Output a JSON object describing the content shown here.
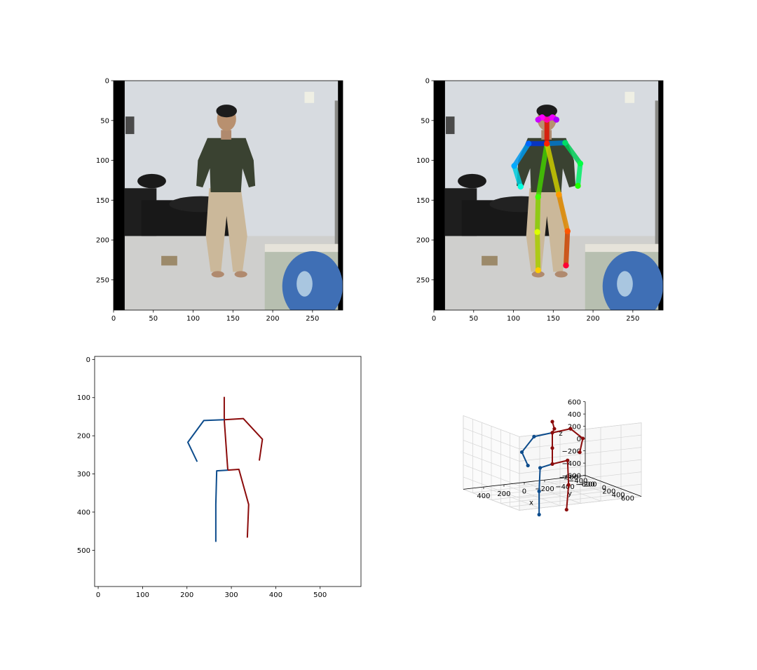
{
  "colors": {
    "left_limb": "#0d4c8c",
    "right_limb": "#8b0b0b",
    "wall": "#d7dbe0",
    "floor": "#cfcfcd",
    "shirt": "#3a4231",
    "pants": "#cbb89a",
    "black_bar": "#000000"
  },
  "chart_data": [
    {
      "name": "input-frame",
      "type": "image",
      "content": "photo of a person standing",
      "xlim": [
        0,
        288
      ],
      "ylim": [
        288,
        0
      ],
      "xticks": [
        0,
        50,
        100,
        150,
        200,
        250
      ],
      "yticks": [
        0,
        50,
        100,
        150,
        200,
        250
      ]
    },
    {
      "name": "frame-with-2d-keypoints",
      "type": "image",
      "content": "photo with colored 2D pose overlay",
      "xlim": [
        0,
        288
      ],
      "ylim": [
        288,
        0
      ],
      "xticks": [
        0,
        50,
        100,
        150,
        200,
        250
      ],
      "yticks": [
        0,
        50,
        100,
        150,
        200,
        250
      ],
      "keypoints": [
        {
          "id": "nose",
          "x": 142,
          "y": 49,
          "color": "#ff00aa"
        },
        {
          "id": "eye-l",
          "x": 136,
          "y": 46,
          "color": "#ff00ff"
        },
        {
          "id": "eye-r",
          "x": 149,
          "y": 46,
          "color": "#ee00ff"
        },
        {
          "id": "ear-l",
          "x": 131,
          "y": 49,
          "color": "#cc00ff"
        },
        {
          "id": "ear-r",
          "x": 154,
          "y": 49,
          "color": "#aa00ff"
        },
        {
          "id": "neck",
          "x": 142,
          "y": 79,
          "color": "#ff2200"
        },
        {
          "id": "shoulder-l",
          "x": 119,
          "y": 79,
          "color": "#0066ff"
        },
        {
          "id": "shoulder-r",
          "x": 165,
          "y": 78,
          "color": "#00dd66"
        },
        {
          "id": "elbow-l",
          "x": 101,
          "y": 107,
          "color": "#00aaff"
        },
        {
          "id": "elbow-r",
          "x": 184,
          "y": 104,
          "color": "#00ff44"
        },
        {
          "id": "wrist-l",
          "x": 109,
          "y": 133,
          "color": "#00ffdd"
        },
        {
          "id": "wrist-r",
          "x": 181,
          "y": 132,
          "color": "#22ff00"
        },
        {
          "id": "hip-l",
          "x": 131,
          "y": 146,
          "color": "#44ff00"
        },
        {
          "id": "hip-r",
          "x": 157,
          "y": 143,
          "color": "#ff9900"
        },
        {
          "id": "knee-l",
          "x": 130,
          "y": 190,
          "color": "#ddff00"
        },
        {
          "id": "knee-r",
          "x": 168,
          "y": 189,
          "color": "#ff5500"
        },
        {
          "id": "ankle-l",
          "x": 131,
          "y": 238,
          "color": "#ffcc00"
        },
        {
          "id": "ankle-r",
          "x": 166,
          "y": 232,
          "color": "#ff0033"
        }
      ],
      "limbs": [
        {
          "from": "neck",
          "to": "nose",
          "color": "#dd1100"
        },
        {
          "from": "neck",
          "to": "shoulder-l",
          "color": "#0033dd"
        },
        {
          "from": "neck",
          "to": "shoulder-r",
          "color": "#0077cc"
        },
        {
          "from": "shoulder-l",
          "to": "elbow-l",
          "color": "#0099ee"
        },
        {
          "from": "elbow-l",
          "to": "wrist-l",
          "color": "#00ccdd"
        },
        {
          "from": "shoulder-r",
          "to": "elbow-r",
          "color": "#00cc55"
        },
        {
          "from": "elbow-r",
          "to": "wrist-r",
          "color": "#00ee66"
        },
        {
          "from": "neck",
          "to": "hip-l",
          "color": "#44cc00"
        },
        {
          "from": "hip-l",
          "to": "knee-l",
          "color": "#88cc00"
        },
        {
          "from": "knee-l",
          "to": "ankle-l",
          "color": "#aacc00"
        },
        {
          "from": "neck",
          "to": "hip-r",
          "color": "#cccc00"
        },
        {
          "from": "hip-r",
          "to": "knee-r",
          "color": "#dd8800"
        },
        {
          "from": "knee-r",
          "to": "ankle-r",
          "color": "#cc4400"
        },
        {
          "from": "nose",
          "to": "eye-l",
          "color": "#ff00cc"
        },
        {
          "from": "nose",
          "to": "eye-r",
          "color": "#dd00ff"
        },
        {
          "from": "eye-l",
          "to": "ear-l",
          "color": "#cc00ee"
        },
        {
          "from": "eye-r",
          "to": "ear-r",
          "color": "#aa00ee"
        }
      ]
    },
    {
      "name": "2d-skeleton",
      "type": "line",
      "xlim": [
        -8,
        592
      ],
      "ylim": [
        595,
        -8
      ],
      "xticks": [
        0,
        100,
        200,
        300,
        400,
        500
      ],
      "yticks": [
        0,
        100,
        200,
        300,
        400,
        500
      ],
      "series": [
        {
          "side": "right",
          "color": "#8b0b0b",
          "x": [
            284,
            284
          ],
          "y": [
            98,
            158
          ]
        },
        {
          "side": "right",
          "color": "#8b0b0b",
          "x": [
            284,
            327,
            370,
            363
          ],
          "y": [
            158,
            155,
            209,
            265
          ]
        },
        {
          "side": "right",
          "color": "#8b0b0b",
          "x": [
            284,
            292,
            317,
            339,
            336
          ],
          "y": [
            158,
            290,
            288,
            380,
            467
          ]
        },
        {
          "side": "left",
          "color": "#0d4c8c",
          "x": [
            284,
            238,
            202,
            223
          ],
          "y": [
            158,
            160,
            217,
            268
          ]
        },
        {
          "side": "left",
          "color": "#0d4c8c",
          "x": [
            292,
            267,
            265,
            265
          ],
          "y": [
            290,
            292,
            380,
            478
          ]
        }
      ]
    },
    {
      "name": "3d-skeleton",
      "type": "line3d",
      "xlabel": "x",
      "ylabel": "y",
      "zlabel": "z",
      "xlim": [
        -600,
        600
      ],
      "ylim": [
        -600,
        600
      ],
      "zlim": [
        -600,
        600
      ],
      "xticks": [
        -600,
        -400,
        -200,
        0,
        200,
        400
      ],
      "yticks": [
        -600,
        -400,
        -200,
        0,
        200,
        400,
        600
      ],
      "zticks": [
        -600,
        -400,
        -200,
        0,
        200,
        400,
        600
      ],
      "xtick_labels": [
        "400",
        "200",
        "0",
        "−200",
        "−400",
        "−600"
      ],
      "xtick_values": [
        400,
        200,
        0,
        -200,
        -400,
        -600
      ],
      "ytick_labels": [
        "−600",
        "−400",
        "−200",
        "0",
        "200",
        "400",
        "600"
      ],
      "ytick_values": [
        -600,
        -400,
        -200,
        0,
        200,
        400,
        600
      ],
      "ztick_labels": [
        "600",
        "400",
        "200",
        "0",
        "−200",
        "−400",
        "−600"
      ],
      "ztick_values": [
        600,
        400,
        200,
        0,
        -200,
        -400,
        -600
      ],
      "joints": [
        {
          "id": "top",
          "x": 0,
          "y": 0,
          "z": 560,
          "c": "r"
        },
        {
          "id": "head",
          "x": -20,
          "y": 0,
          "z": 440,
          "c": "r"
        },
        {
          "id": "neck",
          "x": 0,
          "y": 0,
          "z": 380,
          "c": "r"
        },
        {
          "id": "spine",
          "x": 0,
          "y": 0,
          "z": 130,
          "c": "r"
        },
        {
          "id": "pelvis",
          "x": 0,
          "y": 0,
          "z": -130,
          "c": "r"
        },
        {
          "id": "r-shoulder",
          "x": -180,
          "y": 0,
          "z": 410,
          "c": "r"
        },
        {
          "id": "r-elbow",
          "x": -300,
          "y": 0,
          "z": 230,
          "c": "r"
        },
        {
          "id": "r-wrist",
          "x": -270,
          "y": 0,
          "z": 10,
          "c": "r"
        },
        {
          "id": "l-shoulder",
          "x": 180,
          "y": 0,
          "z": 350,
          "c": "l"
        },
        {
          "id": "l-elbow",
          "x": 300,
          "y": 0,
          "z": 120,
          "c": "l"
        },
        {
          "id": "l-wrist",
          "x": 240,
          "y": 0,
          "z": -110,
          "c": "l"
        },
        {
          "id": "r-hip",
          "x": -150,
          "y": 0,
          "z": -100,
          "c": "r"
        },
        {
          "id": "r-knee",
          "x": -160,
          "y": 0,
          "z": -500,
          "c": "r"
        },
        {
          "id": "r-ankle",
          "x": -140,
          "y": 0,
          "z": -900,
          "c": "r"
        },
        {
          "id": "l-hip",
          "x": 120,
          "y": 0,
          "z": -170,
          "c": "l"
        },
        {
          "id": "l-knee",
          "x": 130,
          "y": 0,
          "z": -550,
          "c": "l"
        },
        {
          "id": "l-ankle",
          "x": 130,
          "y": 0,
          "z": -930,
          "c": "l"
        }
      ],
      "bones": [
        {
          "a": "top",
          "b": "head",
          "c": "r"
        },
        {
          "a": "head",
          "b": "neck",
          "c": "r"
        },
        {
          "a": "neck",
          "b": "spine",
          "c": "r"
        },
        {
          "a": "spine",
          "b": "pelvis",
          "c": "r"
        },
        {
          "a": "neck",
          "b": "r-shoulder",
          "c": "r"
        },
        {
          "a": "r-shoulder",
          "b": "r-elbow",
          "c": "r"
        },
        {
          "a": "r-elbow",
          "b": "r-wrist",
          "c": "r"
        },
        {
          "a": "neck",
          "b": "l-shoulder",
          "c": "l"
        },
        {
          "a": "l-shoulder",
          "b": "l-elbow",
          "c": "l"
        },
        {
          "a": "l-elbow",
          "b": "l-wrist",
          "c": "l"
        },
        {
          "a": "pelvis",
          "b": "r-hip",
          "c": "r"
        },
        {
          "a": "r-hip",
          "b": "r-knee",
          "c": "r"
        },
        {
          "a": "r-knee",
          "b": "r-ankle",
          "c": "r"
        },
        {
          "a": "pelvis",
          "b": "l-hip",
          "c": "l"
        },
        {
          "a": "l-hip",
          "b": "l-knee",
          "c": "l"
        },
        {
          "a": "l-knee",
          "b": "l-ankle",
          "c": "l"
        }
      ]
    }
  ]
}
